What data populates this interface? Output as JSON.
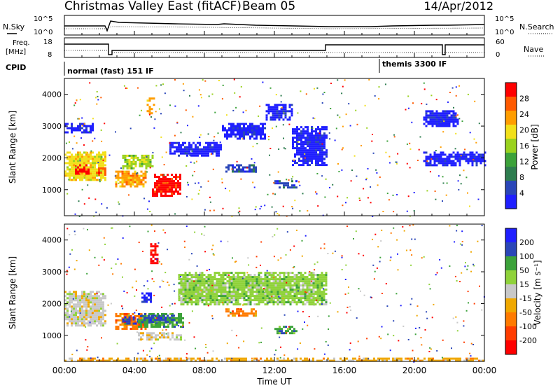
{
  "header": {
    "title": "Christmas Valley East (fitACF)",
    "beam": "Beam 05",
    "date": "14/Apr/2012"
  },
  "panel_labels": {
    "nsky": "N.Sky",
    "nsearch": "N.Search",
    "freq_line1": "Freq.",
    "freq_line2": "[MHz]",
    "nave": "Nave",
    "cpid": "CPID"
  },
  "noise_axis": {
    "left_ticks": [
      "10^5",
      "10^0"
    ],
    "right_ticks": [
      "10^5",
      "10^0"
    ]
  },
  "freq_axis": {
    "left_ticks": [
      "18",
      "8"
    ],
    "right_ticks": [
      "60",
      "0"
    ]
  },
  "cpid_modes": [
    {
      "label": "normal (fast) 151 IF",
      "start_hour": 0
    },
    {
      "label": "themis 3300 IF",
      "start_hour": 18
    }
  ],
  "colors": {
    "power": [
      "#1f1fff",
      "#2a46b8",
      "#2e7d4f",
      "#3ca23a",
      "#9ad21e",
      "#f2e01a",
      "#ff9d00",
      "#ff5a00",
      "#ff0000"
    ],
    "velocity": [
      "#1f1fff",
      "#2a46b8",
      "#3ca23a",
      "#8fd23a",
      "#c8c8c8",
      "#f0a800",
      "#ff7a00",
      "#ff3c00",
      "#ff0000"
    ]
  },
  "chart_data": [
    {
      "type": "heatmap",
      "name": "power",
      "ylabel": "Slant Range [km]",
      "yticks": [
        1000,
        2000,
        3000,
        4000
      ],
      "ylim": [
        180,
        4500
      ],
      "xticks": [
        "00:00",
        "04:00",
        "08:00",
        "12:00",
        "16:00",
        "20:00",
        "00:00"
      ],
      "xlim_hours": [
        0,
        24
      ],
      "colorbar_label": "Power [dB]",
      "colorbar_ticks": [
        "4",
        "8",
        "12",
        "16",
        "20",
        "24",
        "28"
      ],
      "blobs": [
        {
          "t0": 0.0,
          "t1": 2.4,
          "r0": 1300,
          "r1": 2200,
          "level": 5
        },
        {
          "t0": 0.6,
          "t1": 1.4,
          "r0": 1500,
          "r1": 1800,
          "level": 8
        },
        {
          "t0": 1.8,
          "t1": 2.4,
          "r0": 1500,
          "r1": 1700,
          "level": 7
        },
        {
          "t0": 2.9,
          "t1": 4.6,
          "r0": 1100,
          "r1": 1600,
          "level": 6
        },
        {
          "t0": 5.0,
          "t1": 6.6,
          "r0": 800,
          "r1": 1500,
          "level": 8
        },
        {
          "t0": 3.3,
          "t1": 5.0,
          "r0": 1700,
          "r1": 2100,
          "level": 4
        },
        {
          "t0": 4.7,
          "t1": 5.1,
          "r0": 3400,
          "r1": 3900,
          "level": 6
        },
        {
          "t0": 9.2,
          "t1": 11.0,
          "r0": 1600,
          "r1": 1800,
          "level": 1
        },
        {
          "t0": 12.0,
          "t1": 13.3,
          "r0": 1100,
          "r1": 1300,
          "level": 1
        },
        {
          "t0": 0.0,
          "t1": 1.6,
          "r0": 2800,
          "r1": 3100,
          "level": 0
        },
        {
          "t0": 6.0,
          "t1": 9.0,
          "r0": 2100,
          "r1": 2500,
          "level": 0
        },
        {
          "t0": 9.0,
          "t1": 11.5,
          "r0": 2600,
          "r1": 3100,
          "level": 0
        },
        {
          "t0": 11.5,
          "t1": 13.0,
          "r0": 3200,
          "r1": 3700,
          "level": 0
        },
        {
          "t0": 13.0,
          "t1": 15.0,
          "r0": 1800,
          "r1": 3000,
          "level": 0
        },
        {
          "t0": 20.5,
          "t1": 24.0,
          "r0": 1800,
          "r1": 2200,
          "level": 0
        },
        {
          "t0": 20.5,
          "t1": 22.5,
          "r0": 3000,
          "r1": 3500,
          "level": 0
        }
      ]
    },
    {
      "type": "heatmap",
      "name": "velocity",
      "ylabel": "Slant Range [km]",
      "yticks": [
        1000,
        2000,
        3000,
        4000
      ],
      "ylim": [
        180,
        4500
      ],
      "xticks": [
        "00:00",
        "04:00",
        "08:00",
        "12:00",
        "16:00",
        "20:00",
        "00:00"
      ],
      "xlabel": "Time UT",
      "xlim_hours": [
        0,
        24
      ],
      "colorbar_label": "Velocity [m s⁻¹]",
      "colorbar_ticks": [
        "200",
        "100",
        "50",
        "15",
        "-15",
        "-50",
        "-100",
        "-200"
      ],
      "blobs": [
        {
          "t0": 0.0,
          "t1": 2.4,
          "r0": 1300,
          "r1": 2400,
          "level": 4
        },
        {
          "t0": 2.9,
          "t1": 4.6,
          "r0": 1200,
          "r1": 1700,
          "level": 6
        },
        {
          "t0": 3.3,
          "t1": 4.6,
          "r0": 1400,
          "r1": 1600,
          "level": 1
        },
        {
          "t0": 4.2,
          "t1": 6.8,
          "r0": 1300,
          "r1": 1700,
          "level": 2
        },
        {
          "t0": 4.4,
          "t1": 6.2,
          "r0": 1450,
          "r1": 1650,
          "level": 1
        },
        {
          "t0": 4.2,
          "t1": 6.8,
          "r0": 900,
          "r1": 1100,
          "level": 4
        },
        {
          "t0": 4.4,
          "t1": 5.0,
          "r0": 2050,
          "r1": 2350,
          "level": 0
        },
        {
          "t0": 4.9,
          "t1": 5.3,
          "r0": 3300,
          "r1": 3900,
          "level": 8
        },
        {
          "t0": 9.2,
          "t1": 11.0,
          "r0": 1600,
          "r1": 1850,
          "level": 6
        },
        {
          "t0": 12.0,
          "t1": 13.3,
          "r0": 1100,
          "r1": 1300,
          "level": 2
        },
        {
          "t0": 6.5,
          "t1": 15.0,
          "r0": 2000,
          "r1": 3000,
          "level": 3
        },
        {
          "t0": 0.0,
          "t1": 24.0,
          "r0": 180,
          "r1": 300,
          "level": 5
        }
      ]
    }
  ]
}
